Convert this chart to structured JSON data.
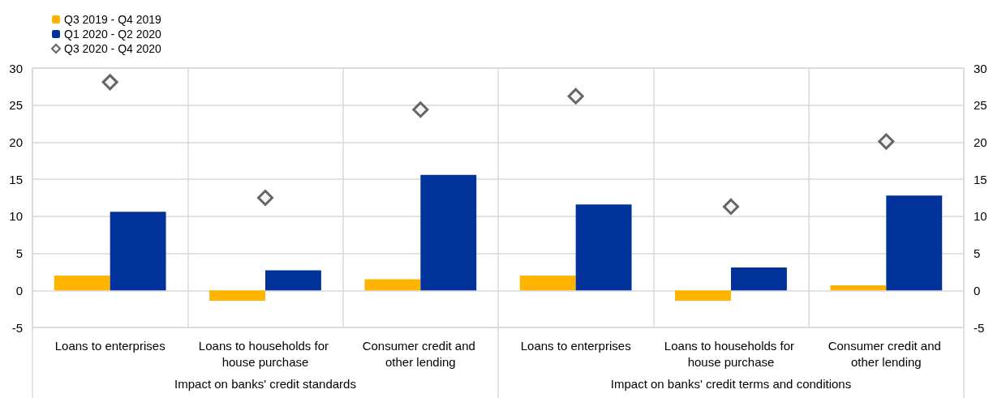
{
  "chart_data": {
    "type": "bar",
    "categories": [
      "Loans to enterprises",
      "Loans to households for house purchase",
      "Consumer credit and other lending",
      "Loans to enterprises",
      "Loans to households for house purchase",
      "Consumer credit and other lending"
    ],
    "series": [
      {
        "name": "Q3 2019 - Q4 2019",
        "color": "#ffb400",
        "values": [
          2.0,
          -1.4,
          1.5,
          2.0,
          -1.4,
          0.7
        ]
      },
      {
        "name": "Q1 2020 - Q2 2020",
        "color": "#003299",
        "values": [
          10.6,
          2.7,
          15.6,
          11.6,
          3.1,
          12.8
        ]
      },
      {
        "name": "Q3 2020 - Q4 2020",
        "type": "scatter",
        "marker": "diamond",
        "color": "#404040",
        "values": [
          28.1,
          12.5,
          24.4,
          26.2,
          11.3,
          20.1
        ]
      }
    ],
    "annotations": [
      "Impact on banks' credit standards",
      "Impact on banks' credit terms and conditions"
    ],
    "ylim": [
      -5,
      30
    ],
    "yticks": [
      -5,
      0,
      5,
      10,
      15,
      20,
      25,
      30
    ],
    "y2lim": [
      -5,
      30
    ],
    "y2ticks": [
      -5,
      0,
      5,
      10,
      15,
      20,
      25,
      30
    ],
    "grid": true,
    "legend": "top left"
  }
}
